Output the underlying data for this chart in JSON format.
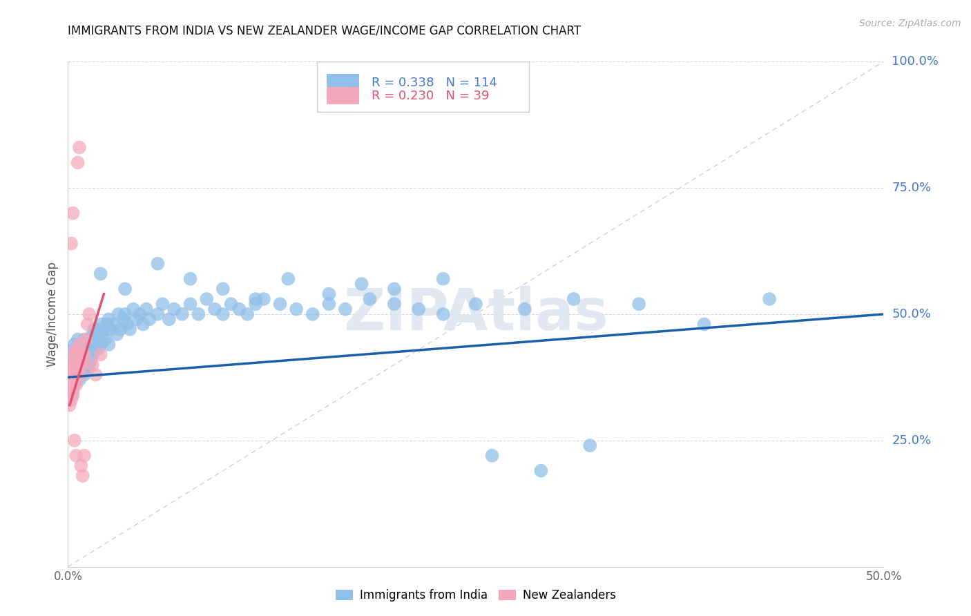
{
  "title": "IMMIGRANTS FROM INDIA VS NEW ZEALANDER WAGE/INCOME GAP CORRELATION CHART",
  "source": "Source: ZipAtlas.com",
  "ylabel": "Wage/Income Gap",
  "xlim": [
    0.0,
    0.5
  ],
  "ylim": [
    0.0,
    1.0
  ],
  "legend_blue_r": "0.338",
  "legend_blue_n": "114",
  "legend_pink_r": "0.230",
  "legend_pink_n": "39",
  "legend_label_blue": "Immigrants from India",
  "legend_label_pink": "New Zealanders",
  "watermark": "ZIPAtlas",
  "blue_color": "#90bfe8",
  "pink_color": "#f5a8bc",
  "trend_blue_color": "#1a5fa8",
  "trend_pink_color": "#e05070",
  "diag_color": "#d0d0d0",
  "right_axis_color": "#4477cc",
  "title_color": "#111111",
  "blue_x": [
    0.001,
    0.001,
    0.002,
    0.002,
    0.002,
    0.002,
    0.003,
    0.003,
    0.003,
    0.003,
    0.004,
    0.004,
    0.004,
    0.004,
    0.005,
    0.005,
    0.005,
    0.006,
    0.006,
    0.006,
    0.007,
    0.007,
    0.007,
    0.008,
    0.008,
    0.008,
    0.009,
    0.009,
    0.01,
    0.01,
    0.01,
    0.011,
    0.011,
    0.012,
    0.012,
    0.013,
    0.013,
    0.014,
    0.014,
    0.015,
    0.015,
    0.016,
    0.016,
    0.017,
    0.018,
    0.018,
    0.019,
    0.02,
    0.02,
    0.021,
    0.022,
    0.023,
    0.024,
    0.025,
    0.025,
    0.026,
    0.028,
    0.03,
    0.031,
    0.032,
    0.034,
    0.035,
    0.036,
    0.038,
    0.04,
    0.042,
    0.044,
    0.046,
    0.048,
    0.05,
    0.055,
    0.058,
    0.062,
    0.065,
    0.07,
    0.075,
    0.08,
    0.085,
    0.09,
    0.095,
    0.1,
    0.105,
    0.11,
    0.115,
    0.12,
    0.13,
    0.14,
    0.15,
    0.16,
    0.17,
    0.185,
    0.2,
    0.215,
    0.23,
    0.25,
    0.28,
    0.31,
    0.35,
    0.39,
    0.43,
    0.02,
    0.035,
    0.055,
    0.075,
    0.095,
    0.115,
    0.135,
    0.16,
    0.18,
    0.2,
    0.23,
    0.26,
    0.29,
    0.32
  ],
  "blue_y": [
    0.37,
    0.4,
    0.38,
    0.36,
    0.42,
    0.34,
    0.37,
    0.35,
    0.39,
    0.43,
    0.36,
    0.38,
    0.41,
    0.44,
    0.37,
    0.4,
    0.42,
    0.38,
    0.41,
    0.45,
    0.37,
    0.39,
    0.43,
    0.38,
    0.41,
    0.44,
    0.39,
    0.42,
    0.38,
    0.41,
    0.45,
    0.4,
    0.43,
    0.39,
    0.42,
    0.4,
    0.44,
    0.41,
    0.45,
    0.42,
    0.46,
    0.43,
    0.47,
    0.44,
    0.43,
    0.47,
    0.45,
    0.44,
    0.48,
    0.46,
    0.47,
    0.45,
    0.48,
    0.44,
    0.49,
    0.47,
    0.48,
    0.46,
    0.5,
    0.47,
    0.49,
    0.5,
    0.48,
    0.47,
    0.51,
    0.49,
    0.5,
    0.48,
    0.51,
    0.49,
    0.5,
    0.52,
    0.49,
    0.51,
    0.5,
    0.52,
    0.5,
    0.53,
    0.51,
    0.5,
    0.52,
    0.51,
    0.5,
    0.52,
    0.53,
    0.52,
    0.51,
    0.5,
    0.52,
    0.51,
    0.53,
    0.52,
    0.51,
    0.5,
    0.52,
    0.51,
    0.53,
    0.52,
    0.48,
    0.53,
    0.58,
    0.55,
    0.6,
    0.57,
    0.55,
    0.53,
    0.57,
    0.54,
    0.56,
    0.55,
    0.57,
    0.22,
    0.19,
    0.24
  ],
  "pink_x": [
    0.001,
    0.001,
    0.001,
    0.002,
    0.002,
    0.002,
    0.002,
    0.003,
    0.003,
    0.003,
    0.003,
    0.004,
    0.004,
    0.005,
    0.005,
    0.005,
    0.006,
    0.006,
    0.007,
    0.007,
    0.008,
    0.008,
    0.009,
    0.01,
    0.011,
    0.012,
    0.013,
    0.015,
    0.017,
    0.02,
    0.002,
    0.003,
    0.004,
    0.005,
    0.006,
    0.007,
    0.008,
    0.009,
    0.01
  ],
  "pink_y": [
    0.36,
    0.38,
    0.32,
    0.35,
    0.37,
    0.33,
    0.4,
    0.36,
    0.38,
    0.34,
    0.42,
    0.37,
    0.4,
    0.36,
    0.39,
    0.43,
    0.38,
    0.41,
    0.4,
    0.44,
    0.38,
    0.42,
    0.4,
    0.42,
    0.45,
    0.48,
    0.5,
    0.4,
    0.38,
    0.42,
    0.64,
    0.7,
    0.25,
    0.22,
    0.8,
    0.83,
    0.2,
    0.18,
    0.22
  ],
  "blue_trend_x0": 0.0,
  "blue_trend_y0": 0.375,
  "blue_trend_x1": 0.5,
  "blue_trend_y1": 0.5,
  "pink_trend_x0": 0.001,
  "pink_trend_y0": 0.32,
  "pink_trend_x1": 0.022,
  "pink_trend_y1": 0.54
}
